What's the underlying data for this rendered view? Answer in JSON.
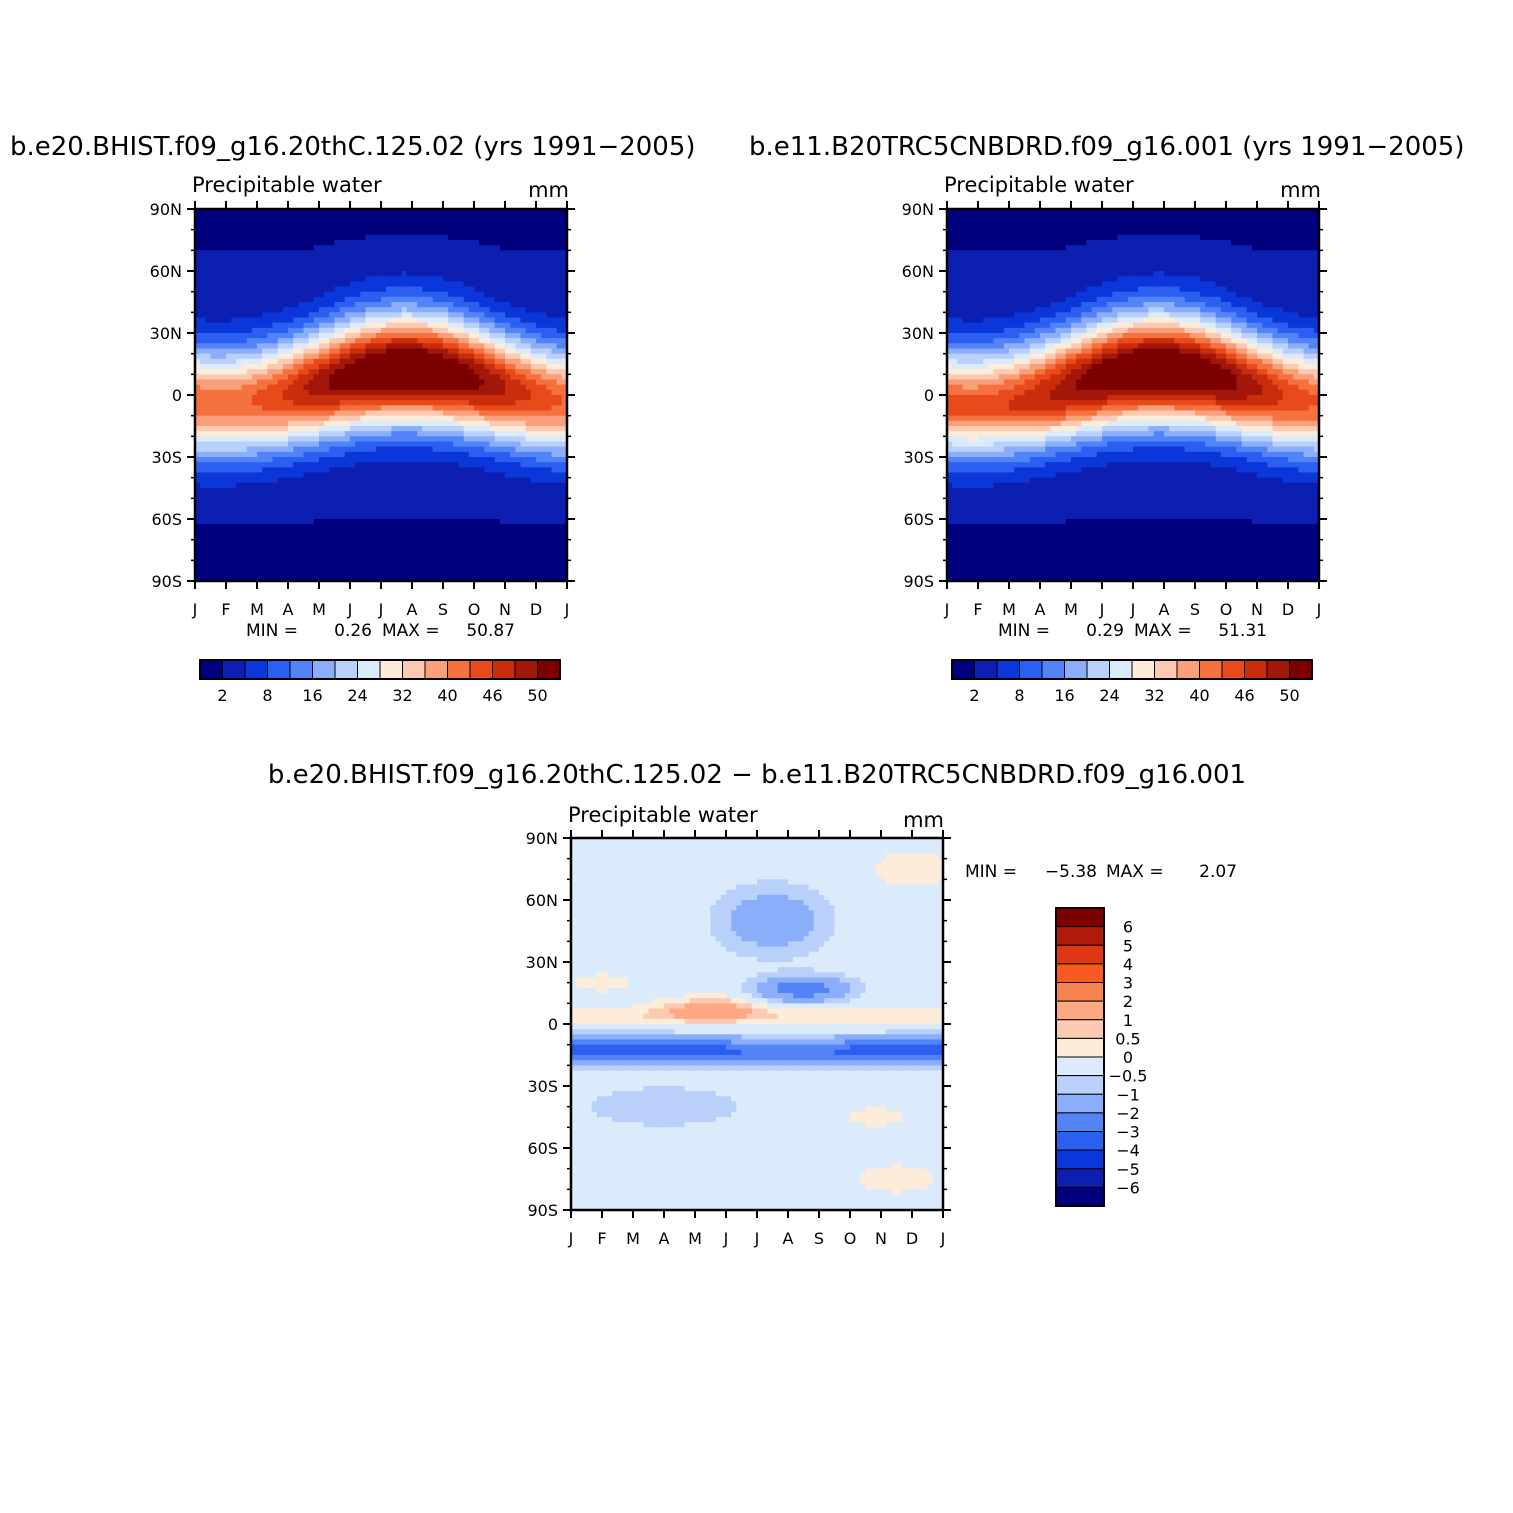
{
  "panels": [
    {
      "id": "model1",
      "title": "b.e20.BHIST.f09_g16.20thC.125.02 (yrs 1991−2005)",
      "variable": "Precipitable water",
      "units": "mm",
      "min_label": "MIN =",
      "min_value": "0.26",
      "max_label": "MAX =",
      "max_value": "50.87"
    },
    {
      "id": "model2",
      "title": "b.e11.B20TRC5CNBDRD.f09_g16.001 (yrs 1991−2005)",
      "variable": "Precipitable water",
      "units": "mm",
      "min_label": "MIN =",
      "min_value": "0.29",
      "max_label": "MAX =",
      "max_value": "51.31"
    },
    {
      "id": "difference",
      "title": "b.e20.BHIST.f09_g16.20thC.125.02 − b.e11.B20TRC5CNBDRD.f09_g16.001",
      "variable": "Precipitable water",
      "units": "mm",
      "min_label": "MIN =",
      "min_value": "−5.38",
      "max_label": "MAX =",
      "max_value": "2.07"
    }
  ],
  "chart_data": [
    {
      "type": "heatmap",
      "title": "b.e20.BHIST.f09_g16.20thC.125.02 (yrs 1991−2005)",
      "subtitle": "Precipitable water",
      "units": "mm",
      "x_tick_labels": [
        "J",
        "F",
        "M",
        "A",
        "M",
        "J",
        "J",
        "A",
        "S",
        "O",
        "N",
        "D",
        "J"
      ],
      "y_tick_labels": [
        "90N",
        "60N",
        "30N",
        "0",
        "30S",
        "60S",
        "90S"
      ],
      "xlim": [
        0,
        12
      ],
      "ylim": [
        -90,
        90
      ],
      "field_min": 0.26,
      "field_max": 50.87,
      "colorbar_labels": [
        "2",
        "8",
        "16",
        "24",
        "32",
        "40",
        "46",
        "50"
      ],
      "colorbar_colors": [
        "#00007f",
        "#0c1fb0",
        "#0a36da",
        "#2b5ff2",
        "#5384f7",
        "#8aaefa",
        "#b9d0fb",
        "#dcebfc",
        "#fdecd9",
        "#fccab0",
        "#f9a07a",
        "#f5713f",
        "#e94a1b",
        "#c92d0c",
        "#a3160a",
        "#7c0000"
      ],
      "grid": false
    },
    {
      "type": "heatmap",
      "title": "b.e11.B20TRC5CNBDRD.f09_g16.001 (yrs 1991−2005)",
      "subtitle": "Precipitable water",
      "units": "mm",
      "x_tick_labels": [
        "J",
        "F",
        "M",
        "A",
        "M",
        "J",
        "J",
        "A",
        "S",
        "O",
        "N",
        "D",
        "J"
      ],
      "y_tick_labels": [
        "90N",
        "60N",
        "30N",
        "0",
        "30S",
        "60S",
        "90S"
      ],
      "xlim": [
        0,
        12
      ],
      "ylim": [
        -90,
        90
      ],
      "field_min": 0.29,
      "field_max": 51.31,
      "colorbar_labels": [
        "2",
        "8",
        "16",
        "24",
        "32",
        "40",
        "46",
        "50"
      ],
      "colorbar_colors": [
        "#00007f",
        "#0c1fb0",
        "#0a36da",
        "#2b5ff2",
        "#5384f7",
        "#8aaefa",
        "#b9d0fb",
        "#dcebfc",
        "#fdecd9",
        "#fccab0",
        "#f9a07a",
        "#f5713f",
        "#e94a1b",
        "#c92d0c",
        "#a3160a",
        "#7c0000"
      ],
      "grid": false
    },
    {
      "type": "heatmap",
      "title": "b.e20.BHIST.f09_g16.20thC.125.02 − b.e11.B20TRC5CNBDRD.f09_g16.001",
      "subtitle": "Precipitable water",
      "units": "mm",
      "x_tick_labels": [
        "J",
        "F",
        "M",
        "A",
        "M",
        "J",
        "J",
        "A",
        "S",
        "O",
        "N",
        "D",
        "J"
      ],
      "y_tick_labels": [
        "90N",
        "60N",
        "30N",
        "0",
        "30S",
        "60S",
        "90S"
      ],
      "xlim": [
        0,
        12
      ],
      "ylim": [
        -90,
        90
      ],
      "field_min": -5.38,
      "field_max": 2.07,
      "colorbar_labels": [
        "6",
        "5",
        "4",
        "3",
        "2",
        "1",
        "0.5",
        "0",
        "−0.5",
        "−1",
        "−2",
        "−3",
        "−4",
        "−5",
        "−6"
      ],
      "colorbar_colors": [
        "#7c0000",
        "#b01a0c",
        "#df3712",
        "#f85a24",
        "#f9834f",
        "#fca883",
        "#fccab0",
        "#fdecd9",
        "#dcebfc",
        "#b9d0fb",
        "#8aaefa",
        "#5384f7",
        "#2b5ff2",
        "#0a36da",
        "#0c1fb0",
        "#00007f"
      ],
      "grid": false
    }
  ]
}
